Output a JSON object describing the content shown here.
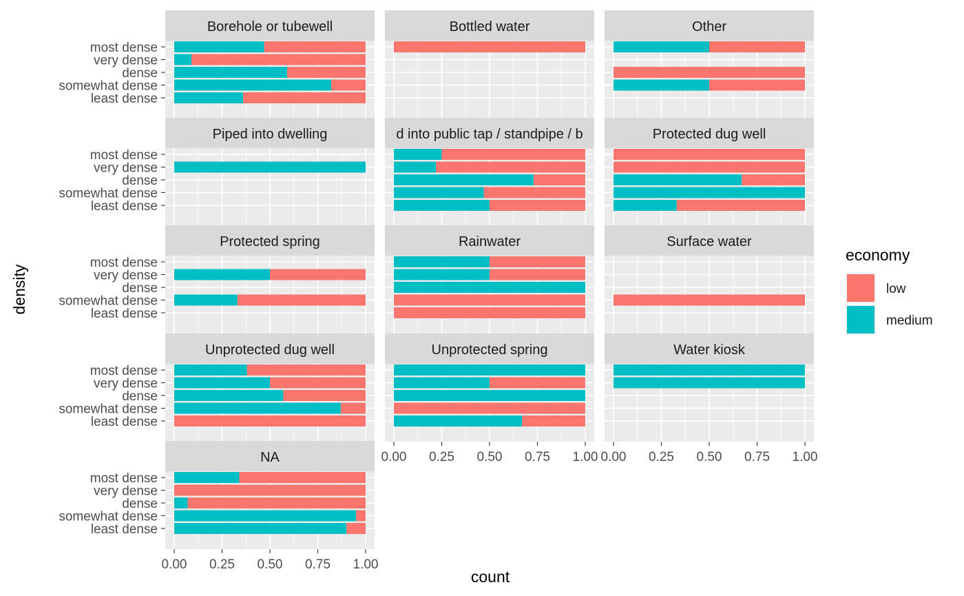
{
  "chart_data": {
    "type": "bar",
    "orientation": "horizontal",
    "position": "fill",
    "xlabel": "count",
    "ylabel": "density",
    "xlim": [
      0,
      1
    ],
    "x_ticks": [
      "0.00",
      "0.25",
      "0.50",
      "0.75",
      "1.00"
    ],
    "categories": [
      "most dense",
      "very dense",
      "dense",
      "somewhat dense",
      "least dense"
    ],
    "legend": {
      "title": "economy",
      "placement": "right",
      "items": [
        {
          "label": "low",
          "color": "#F8766D"
        },
        {
          "label": "medium",
          "color": "#00BFC4"
        }
      ]
    },
    "facets": [
      {
        "title": "Borehole or tubewell",
        "medium": [
          0.47,
          0.09,
          0.59,
          0.82,
          0.36
        ]
      },
      {
        "title": "Bottled water",
        "medium": [
          0.0,
          null,
          null,
          null,
          null
        ]
      },
      {
        "title": "Other",
        "medium": [
          0.5,
          null,
          0.0,
          0.5,
          null
        ]
      },
      {
        "title": "Piped into dwelling",
        "medium": [
          null,
          1.0,
          null,
          null,
          null
        ]
      },
      {
        "title": "d into public tap / standpipe / b",
        "medium": [
          0.25,
          0.22,
          0.73,
          0.47,
          0.5
        ]
      },
      {
        "title": "Protected dug well",
        "medium": [
          0.0,
          0.0,
          0.67,
          1.0,
          0.33
        ]
      },
      {
        "title": "Protected spring",
        "medium": [
          null,
          0.5,
          null,
          0.33,
          null
        ]
      },
      {
        "title": "Rainwater",
        "medium": [
          0.5,
          0.5,
          1.0,
          0.0,
          0.0
        ]
      },
      {
        "title": "Surface water",
        "medium": [
          null,
          null,
          null,
          0.0,
          null
        ]
      },
      {
        "title": "Unprotected dug well",
        "medium": [
          0.38,
          0.5,
          0.57,
          0.87,
          0.0
        ]
      },
      {
        "title": "Unprotected spring",
        "medium": [
          1.0,
          0.5,
          1.0,
          0.0,
          0.67
        ]
      },
      {
        "title": "Water kiosk",
        "medium": [
          1.0,
          1.0,
          null,
          null,
          null
        ]
      },
      {
        "title": "NA",
        "medium": [
          0.34,
          0.0,
          0.07,
          0.95,
          0.9
        ]
      }
    ]
  }
}
